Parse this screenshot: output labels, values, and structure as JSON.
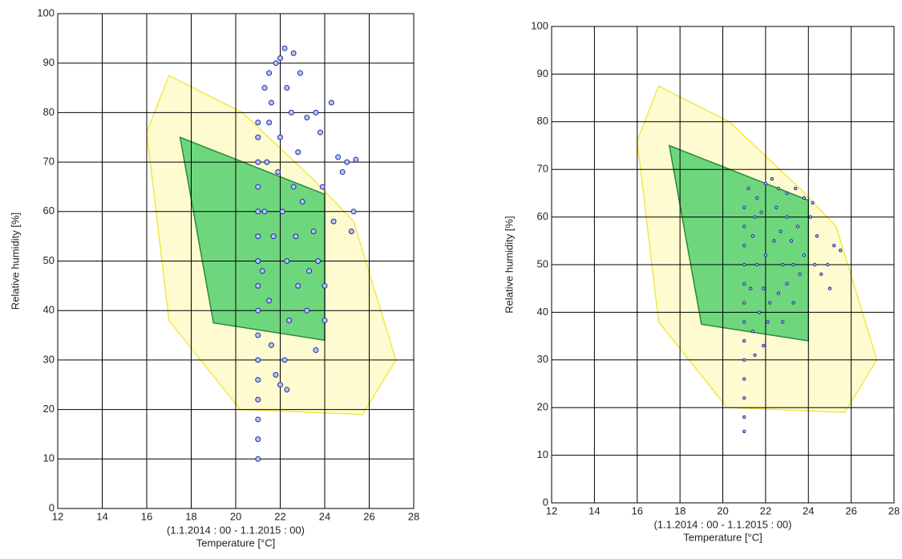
{
  "chart_data": [
    {
      "type": "scatter",
      "ylabel": "Relative humidity [%]",
      "xnote": "(1.1.2014 : 00 - 1.1.2015 : 00)",
      "xlabel": "Temperature [°C]",
      "xlim": [
        12,
        28
      ],
      "ylim": [
        0,
        100
      ],
      "xticks": [
        12,
        14,
        16,
        18,
        20,
        22,
        24,
        26,
        28
      ],
      "yticks": [
        0,
        10,
        20,
        30,
        40,
        50,
        60,
        70,
        80,
        90,
        100
      ],
      "grid": true,
      "marker_color": "#1c2d9c",
      "marker_size": 3,
      "regions": [
        {
          "color": "#fffbd0",
          "edge": "#f0e84a",
          "x": [
            17,
            20.3,
            23.6,
            25.3,
            27.2,
            25.7,
            20.2,
            17,
            16
          ],
          "y": [
            87.5,
            80,
            66,
            58,
            30,
            19,
            20,
            38,
            76
          ]
        },
        {
          "color": "#6ed77e",
          "edge": "#2a8a3a",
          "x": [
            17.5,
            24,
            24,
            19
          ],
          "y": [
            75,
            63.5,
            34,
            37.5
          ]
        }
      ],
      "x": [
        21,
        21,
        21,
        21,
        21,
        21,
        21,
        21,
        21,
        21,
        21,
        21,
        21,
        21,
        21,
        21,
        21.3,
        21.5,
        21.8,
        22,
        22.2,
        22.6,
        22.9,
        22.3,
        21.6,
        22.5,
        23.2,
        23.6,
        24.3,
        23.8,
        24.6,
        25,
        25.4,
        24.8,
        23.9,
        25.3,
        25.2,
        24.4,
        23.5,
        23.7,
        24,
        23.2,
        22.4,
        21.5,
        21.2,
        21.7,
        22.1,
        22.6,
        21.4,
        22,
        22.8,
        23,
        22.3,
        22.8,
        22.2,
        22,
        22.3,
        21.8,
        21.6,
        23.6,
        24,
        21.3,
        21.9,
        22.7,
        23.3,
        21.5
      ],
      "y": [
        10,
        14,
        18,
        22,
        26,
        30,
        35,
        40,
        45,
        50,
        55,
        60,
        65,
        70,
        75,
        78,
        85,
        88,
        90,
        91,
        93,
        92,
        88,
        85,
        82,
        80,
        79,
        80,
        82,
        76,
        71,
        70,
        70.5,
        68,
        65,
        60,
        56,
        58,
        56,
        50,
        45,
        40,
        38,
        42,
        48,
        55,
        60,
        65,
        70,
        75,
        72,
        62,
        50,
        45,
        30,
        25,
        24,
        27,
        33,
        32,
        38,
        60,
        68,
        55,
        48,
        78
      ]
    },
    {
      "type": "scatter",
      "ylabel": "Relative humidity [%]",
      "xnote": "(1.1.2014 : 00 - 1.1.2015 : 00)",
      "xlabel": "Temperature [°C]",
      "xlim": [
        12,
        28
      ],
      "ylim": [
        0,
        100
      ],
      "xticks": [
        12,
        14,
        16,
        18,
        20,
        22,
        24,
        26,
        28
      ],
      "yticks": [
        0,
        10,
        20,
        30,
        40,
        50,
        60,
        70,
        80,
        90,
        100
      ],
      "grid": true,
      "marker_color": "#1c2d9c",
      "marker_size": 1.7,
      "regions": [
        {
          "color": "#fffbd0",
          "edge": "#f0e84a",
          "x": [
            17,
            20.3,
            23.6,
            25.3,
            27.2,
            25.7,
            20.2,
            17,
            16
          ],
          "y": [
            87.5,
            80,
            66,
            58,
            30,
            19,
            20,
            38,
            76
          ]
        },
        {
          "color": "#6ed77e",
          "edge": "#2a8a3a",
          "x": [
            17.5,
            24,
            24,
            19
          ],
          "y": [
            75,
            63.5,
            34,
            37.5
          ]
        }
      ],
      "x": [
        21,
        21,
        21,
        21,
        21,
        21,
        21,
        21,
        21,
        21,
        21,
        21,
        21,
        21.2,
        21.6,
        22,
        22.3,
        22.6,
        23,
        23.4,
        23.8,
        24.2,
        24.1,
        23.5,
        23,
        22.5,
        21.8,
        21.4,
        21.6,
        21.9,
        22.2,
        22.6,
        23,
        23.3,
        23.8,
        24.3,
        24.6,
        24.9,
        25.2,
        25.5,
        25,
        24.4,
        23.6,
        22.8,
        22.4,
        21.7,
        21.4,
        21.9,
        21.5,
        22.1,
        22.8,
        23.3,
        21.3,
        22,
        22.7,
        23.2,
        21.5
      ],
      "y": [
        15,
        18,
        22,
        26,
        30,
        34,
        38,
        42,
        46,
        50,
        54,
        58,
        62,
        66,
        64,
        67,
        68,
        66,
        65,
        66,
        64,
        63,
        60,
        58,
        60,
        62,
        61,
        56,
        50,
        45,
        42,
        44,
        46,
        50,
        52,
        50,
        48,
        50,
        54,
        53,
        45,
        56,
        48,
        50,
        55,
        40,
        36,
        33,
        31,
        38,
        38,
        42,
        45,
        52,
        57,
        55,
        60
      ]
    }
  ]
}
